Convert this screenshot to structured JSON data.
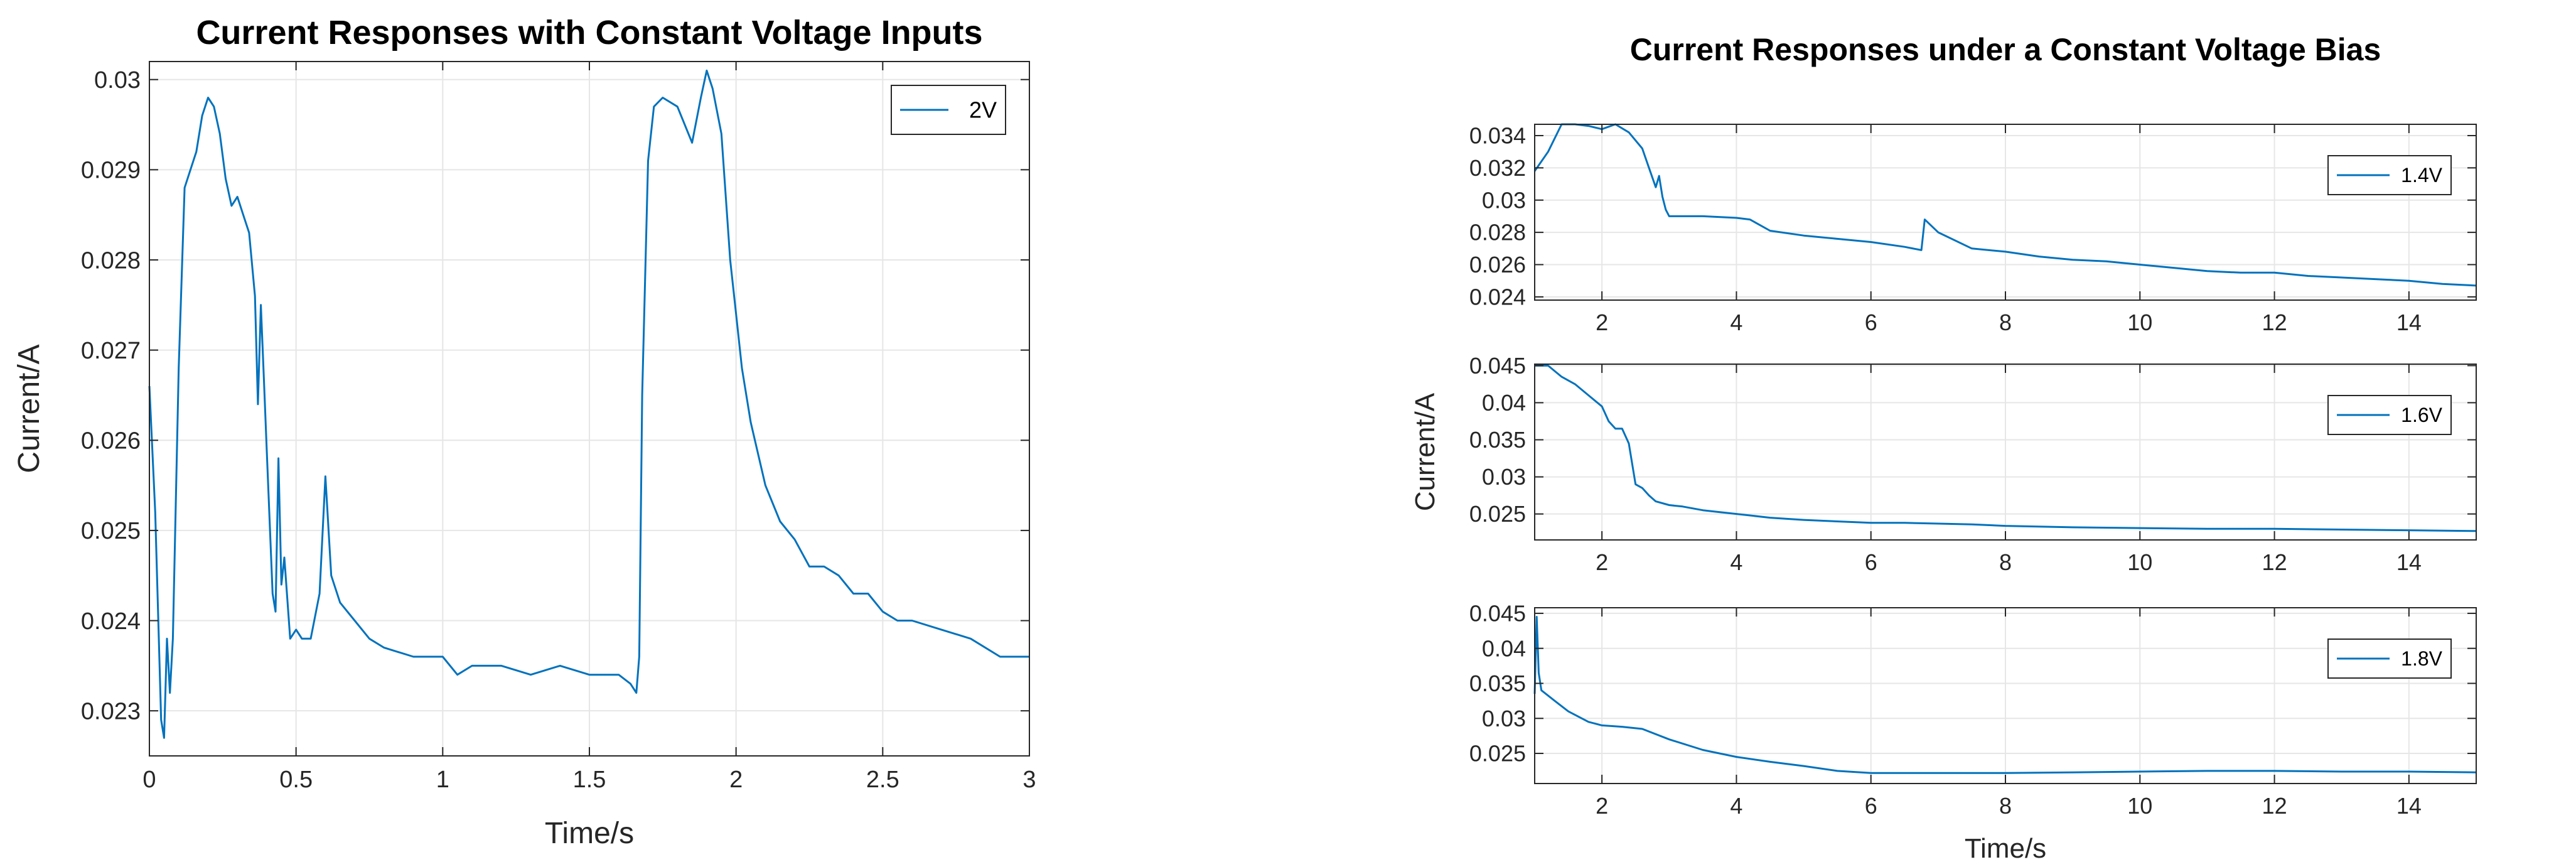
{
  "colors": {
    "series": "#0072bd",
    "grid": "#e6e6e6",
    "axis": "#262626",
    "background": "#ffffff"
  },
  "chart_data": [
    {
      "type": "line",
      "title": "Current Responses with Constant Voltage Inputs",
      "xlabel": "Time/s",
      "ylabel": "Current/A",
      "xlim": [
        0,
        3
      ],
      "ylim": [
        0.0225,
        0.0302
      ],
      "xticks": [
        0,
        0.5,
        1,
        1.5,
        2,
        2.5,
        3
      ],
      "xtick_labels": [
        "0",
        "0.5",
        "1",
        "1.5",
        "2",
        "2.5",
        "3"
      ],
      "yticks": [
        0.023,
        0.024,
        0.025,
        0.026,
        0.027,
        0.028,
        0.029,
        0.03
      ],
      "ytick_labels": [
        "0.023",
        "0.024",
        "0.025",
        "0.026",
        "0.027",
        "0.028",
        "0.029",
        "0.03"
      ],
      "grid": true,
      "legend": "top-right",
      "series": [
        {
          "name": "2V",
          "x": [
            0,
            0.02,
            0.04,
            0.05,
            0.06,
            0.07,
            0.08,
            0.1,
            0.12,
            0.14,
            0.16,
            0.18,
            0.2,
            0.22,
            0.24,
            0.26,
            0.28,
            0.3,
            0.32,
            0.34,
            0.36,
            0.37,
            0.38,
            0.39,
            0.4,
            0.42,
            0.43,
            0.44,
            0.45,
            0.46,
            0.48,
            0.5,
            0.52,
            0.55,
            0.58,
            0.6,
            0.62,
            0.65,
            0.7,
            0.75,
            0.8,
            0.9,
            1.0,
            1.05,
            1.1,
            1.2,
            1.3,
            1.4,
            1.5,
            1.55,
            1.6,
            1.64,
            1.66,
            1.67,
            1.68,
            1.7,
            1.72,
            1.75,
            1.8,
            1.85,
            1.88,
            1.9,
            1.92,
            1.95,
            1.98,
            2.0,
            2.02,
            2.05,
            2.1,
            2.15,
            2.2,
            2.25,
            2.3,
            2.35,
            2.4,
            2.45,
            2.5,
            2.55,
            2.6,
            2.7,
            2.8,
            2.9,
            3.0
          ],
          "y": [
            0.0266,
            0.0252,
            0.0229,
            0.0227,
            0.0238,
            0.0232,
            0.0238,
            0.0268,
            0.0288,
            0.029,
            0.0292,
            0.0296,
            0.0298,
            0.0297,
            0.0294,
            0.0289,
            0.0286,
            0.0287,
            0.0285,
            0.0283,
            0.0276,
            0.0264,
            0.0275,
            0.0267,
            0.0259,
            0.0243,
            0.0241,
            0.0258,
            0.0244,
            0.0247,
            0.0238,
            0.0239,
            0.0238,
            0.0238,
            0.0243,
            0.0256,
            0.0245,
            0.0242,
            0.024,
            0.0238,
            0.0237,
            0.0236,
            0.0236,
            0.0234,
            0.0235,
            0.0235,
            0.0234,
            0.0235,
            0.0234,
            0.0234,
            0.0234,
            0.0233,
            0.0232,
            0.0236,
            0.0265,
            0.0291,
            0.0297,
            0.0298,
            0.0297,
            0.0293,
            0.0298,
            0.0301,
            0.0299,
            0.0294,
            0.028,
            0.0274,
            0.0268,
            0.0262,
            0.0255,
            0.0251,
            0.0249,
            0.0246,
            0.0246,
            0.0245,
            0.0243,
            0.0243,
            0.0241,
            0.024,
            0.024,
            0.0239,
            0.0238,
            0.0236,
            0.0236
          ]
        }
      ]
    },
    {
      "type": "line",
      "title": "Current Responses under a Constant Voltage Bias",
      "xlabel": "",
      "ylabel": "",
      "xlim": [
        1,
        15
      ],
      "ylim": [
        0.0238,
        0.0347
      ],
      "xticks": [
        2,
        4,
        6,
        8,
        10,
        12,
        14
      ],
      "xtick_labels": [
        "2",
        "4",
        "6",
        "8",
        "10",
        "12",
        "14"
      ],
      "yticks": [
        0.024,
        0.026,
        0.028,
        0.03,
        0.032,
        0.034
      ],
      "ytick_labels": [
        "0.024",
        "0.026",
        "0.028",
        "0.03",
        "0.032",
        "0.034"
      ],
      "grid": true,
      "legend": "top-right",
      "series": [
        {
          "name": "1.4V",
          "x": [
            1,
            1.2,
            1.4,
            1.6,
            1.8,
            2.0,
            2.2,
            2.4,
            2.6,
            2.7,
            2.8,
            2.85,
            2.9,
            2.95,
            3.0,
            3.5,
            4.0,
            4.2,
            4.5,
            5.0,
            5.5,
            6.0,
            6.5,
            6.75,
            6.8,
            7.0,
            7.5,
            8.0,
            8.5,
            9.0,
            9.5,
            10.0,
            10.5,
            11.0,
            11.5,
            12.0,
            12.5,
            13.0,
            13.5,
            14.0,
            14.5,
            15.0
          ],
          "y": [
            0.0318,
            0.033,
            0.0347,
            0.0347,
            0.0346,
            0.0344,
            0.0347,
            0.0342,
            0.0332,
            0.032,
            0.0308,
            0.0315,
            0.0302,
            0.0294,
            0.029,
            0.029,
            0.0289,
            0.0288,
            0.0281,
            0.0278,
            0.0276,
            0.0274,
            0.0271,
            0.0269,
            0.0288,
            0.028,
            0.027,
            0.0268,
            0.0265,
            0.0263,
            0.0262,
            0.026,
            0.0258,
            0.0256,
            0.0255,
            0.0255,
            0.0253,
            0.0252,
            0.0251,
            0.025,
            0.0248,
            0.0247
          ]
        }
      ]
    },
    {
      "type": "line",
      "title": "",
      "xlabel": "",
      "ylabel": "Current/A",
      "xlim": [
        1,
        15
      ],
      "ylim": [
        0.0215,
        0.0452
      ],
      "xticks": [
        2,
        4,
        6,
        8,
        10,
        12,
        14
      ],
      "xtick_labels": [
        "2",
        "4",
        "6",
        "8",
        "10",
        "12",
        "14"
      ],
      "yticks": [
        0.025,
        0.03,
        0.035,
        0.04,
        0.045
      ],
      "ytick_labels": [
        "0.025",
        "0.03",
        "0.035",
        "0.04",
        "0.045"
      ],
      "grid": true,
      "legend": "top-right",
      "series": [
        {
          "name": "1.6V",
          "x": [
            1,
            1.2,
            1.4,
            1.6,
            1.8,
            2.0,
            2.1,
            2.2,
            2.3,
            2.4,
            2.5,
            2.6,
            2.7,
            2.8,
            3.0,
            3.2,
            3.5,
            4.0,
            4.5,
            5.0,
            5.5,
            6.0,
            6.5,
            7.0,
            7.5,
            8.0,
            9.0,
            10.0,
            11.0,
            12.0,
            13.0,
            14.0,
            15.0
          ],
          "y": [
            0.045,
            0.045,
            0.0435,
            0.0425,
            0.041,
            0.0395,
            0.0375,
            0.0365,
            0.0365,
            0.0345,
            0.029,
            0.0285,
            0.0275,
            0.0267,
            0.0262,
            0.026,
            0.0255,
            0.025,
            0.0245,
            0.0242,
            0.024,
            0.0238,
            0.0238,
            0.0237,
            0.0236,
            0.0234,
            0.0232,
            0.0231,
            0.023,
            0.023,
            0.0229,
            0.0228,
            0.0227
          ]
        }
      ]
    },
    {
      "type": "line",
      "title": "",
      "xlabel": "Time/s",
      "ylabel": "",
      "xlim": [
        1,
        15
      ],
      "ylim": [
        0.0207,
        0.0458
      ],
      "xticks": [
        2,
        4,
        6,
        8,
        10,
        12,
        14
      ],
      "xtick_labels": [
        "2",
        "4",
        "6",
        "8",
        "10",
        "12",
        "14"
      ],
      "yticks": [
        0.025,
        0.03,
        0.035,
        0.04,
        0.045
      ],
      "ytick_labels": [
        "0.025",
        "0.03",
        "0.035",
        "0.04",
        "0.045"
      ],
      "grid": true,
      "legend": "top-right",
      "series": [
        {
          "name": "1.8V",
          "x": [
            1,
            1.03,
            1.06,
            1.1,
            1.3,
            1.5,
            1.8,
            2.0,
            2.3,
            2.6,
            3.0,
            3.5,
            4.0,
            4.5,
            5.0,
            5.5,
            6.0,
            7.0,
            8.0,
            9.0,
            10.0,
            11.0,
            12.0,
            13.0,
            14.0,
            15.0
          ],
          "y": [
            0.0335,
            0.0445,
            0.0365,
            0.034,
            0.0325,
            0.031,
            0.0295,
            0.029,
            0.0288,
            0.0285,
            0.027,
            0.0255,
            0.0245,
            0.0238,
            0.0232,
            0.0225,
            0.0222,
            0.0222,
            0.0222,
            0.0223,
            0.0224,
            0.0225,
            0.0225,
            0.0224,
            0.0224,
            0.0223
          ]
        }
      ]
    }
  ]
}
